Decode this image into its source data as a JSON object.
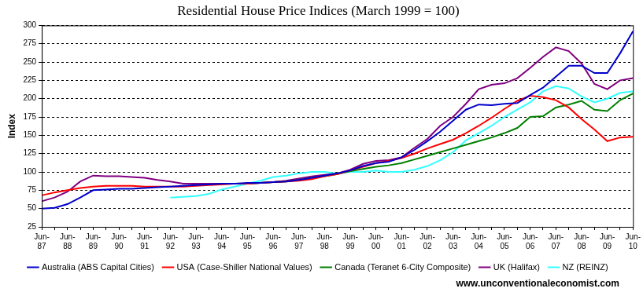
{
  "chart_data": {
    "type": "line",
    "title": "Residential House Price Indices (March 1999 = 100)",
    "y_label": "Index",
    "source": "www.unconventionaleconomist.com",
    "categories": [
      "Jun-87",
      null,
      "Jun-88",
      null,
      "Jun-89",
      null,
      "Jun-90",
      null,
      "Jun-91",
      null,
      "Jun-92",
      null,
      "Jun-93",
      null,
      "Jun-94",
      null,
      "Jun-95",
      null,
      "Jun-96",
      null,
      "Jun-97",
      null,
      "Jun-98",
      null,
      "Jun-99",
      null,
      "Jun-00",
      null,
      "Jun-01",
      null,
      "Jun-02",
      null,
      "Jun-03",
      null,
      "Jun-04",
      null,
      "Jun-05",
      null,
      "Jun-06",
      null,
      "Jun-07",
      null,
      "Jun-08",
      null,
      "Jun-09",
      null,
      "Jun-10"
    ],
    "series": [
      {
        "name": "Australia (ABS Capital Cities)",
        "color": "#0000cc",
        "values": [
          50,
          51,
          56,
          65,
          75,
          76,
          77,
          77,
          78,
          79,
          80,
          81,
          82,
          83,
          84,
          84,
          85,
          85,
          86,
          87,
          89,
          92,
          95,
          98,
          102,
          108,
          112,
          114,
          120,
          130,
          142,
          155,
          170,
          185,
          192,
          191,
          193,
          194,
          205,
          215,
          230,
          245,
          245,
          235,
          235,
          262,
          292
        ]
      },
      {
        "name": "USA (Case-Shiller National Values)",
        "color": "#ff0000",
        "values": [
          68,
          72,
          75,
          78,
          80,
          81,
          81,
          81,
          80,
          80,
          80,
          80,
          81,
          82,
          83,
          84,
          84,
          85,
          86,
          87,
          88,
          90,
          94,
          97,
          102,
          107,
          112,
          115,
          119,
          125,
          132,
          138,
          144,
          153,
          163,
          174,
          186,
          197,
          204,
          202,
          198,
          188,
          172,
          158,
          142,
          147,
          148
        ]
      },
      {
        "name": "Canada (Teranet 6-City Composite)",
        "color": "#008000",
        "values": [
          null,
          null,
          null,
          null,
          null,
          null,
          null,
          null,
          null,
          null,
          null,
          null,
          null,
          null,
          null,
          null,
          84,
          85,
          86,
          87,
          89,
          92,
          94,
          97,
          101,
          104,
          107,
          109,
          112,
          117,
          122,
          127,
          132,
          137,
          142,
          147,
          153,
          160,
          175,
          176,
          188,
          192,
          197,
          185,
          183,
          198,
          207
        ]
      },
      {
        "name": "UK (Halifax)",
        "color": "#800080",
        "values": [
          60,
          65,
          73,
          87,
          95,
          94,
          94,
          93,
          92,
          89,
          87,
          84,
          84,
          84,
          84,
          84,
          84,
          85,
          86,
          88,
          91,
          94,
          96,
          98,
          103,
          111,
          115,
          116,
          120,
          133,
          145,
          163,
          175,
          193,
          213,
          219,
          221,
          228,
          242,
          257,
          270,
          265,
          248,
          220,
          213,
          225,
          228
        ]
      },
      {
        "name": "NZ (REINZ)",
        "color": "#33ffff",
        "values": [
          null,
          null,
          null,
          null,
          null,
          null,
          null,
          null,
          null,
          null,
          65,
          66,
          67,
          70,
          76,
          80,
          84,
          88,
          93,
          95,
          98,
          100,
          100,
          98,
          100,
          100,
          102,
          100,
          100,
          103,
          108,
          116,
          127,
          143,
          153,
          163,
          175,
          185,
          195,
          210,
          217,
          214,
          203,
          195,
          200,
          208,
          210
        ]
      }
    ],
    "ylim": [
      25,
      300
    ],
    "yticks": [
      25,
      50,
      75,
      100,
      125,
      150,
      175,
      200,
      225,
      250,
      275,
      300
    ],
    "grid": true,
    "legend": "bottom"
  }
}
